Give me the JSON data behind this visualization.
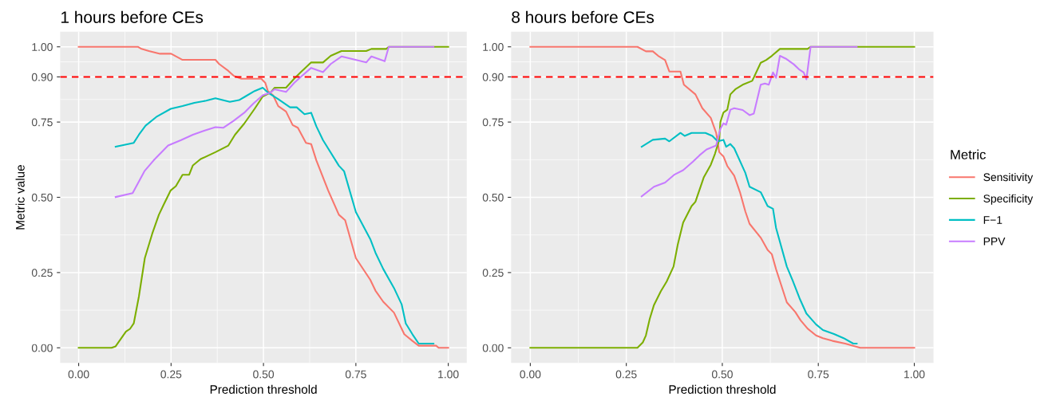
{
  "chart_data": [
    {
      "type": "line",
      "title": "1 hours before CEs",
      "xlabel": "Prediction threshold",
      "ylabel": "Metric value",
      "legend_title": "Metric",
      "legend": "right",
      "xlim": [
        -0.05,
        1.05
      ],
      "ylim": [
        -0.05,
        1.05
      ],
      "xticks": [
        {
          "value": 0,
          "label": "0.00"
        },
        {
          "value": 0.25,
          "label": "0.25"
        },
        {
          "value": 0.5,
          "label": "0.50"
        },
        {
          "value": 0.75,
          "label": "0.75"
        },
        {
          "value": 1,
          "label": "1.00"
        }
      ],
      "yticks": [
        {
          "value": 0,
          "label": "0.00"
        },
        {
          "value": 0.25,
          "label": "0.25"
        },
        {
          "value": 0.5,
          "label": "0.50"
        },
        {
          "value": 0.75,
          "label": "0.75"
        },
        {
          "value": 0.9,
          "label": "0.90"
        },
        {
          "value": 1,
          "label": "1.00"
        }
      ],
      "grid": true,
      "ref_lines": [
        {
          "axis": "y",
          "value": 0.9,
          "color": "#ff0000",
          "line_style": "dashed"
        }
      ],
      "series": [
        {
          "name": "Sensitivity",
          "color": "#f8766d",
          "x": [
            0,
            0.16,
            0.17,
            0.19,
            0.22,
            0.25,
            0.28,
            0.37,
            0.38,
            0.405,
            0.42,
            0.44,
            0.494,
            0.505,
            0.512,
            0.526,
            0.54,
            0.561,
            0.579,
            0.593,
            0.615,
            0.629,
            0.643,
            0.675,
            0.704,
            0.721,
            0.75,
            0.789,
            0.803,
            0.824,
            0.853,
            0.881,
            0.903,
            0.92,
            0.967,
            0.974,
            1.0
          ],
          "values": [
            1.0,
            1.0,
            0.993,
            0.986,
            0.977,
            0.977,
            0.957,
            0.957,
            0.943,
            0.92,
            0.903,
            0.894,
            0.894,
            0.88,
            0.853,
            0.839,
            0.803,
            0.785,
            0.74,
            0.731,
            0.681,
            0.677,
            0.623,
            0.523,
            0.442,
            0.424,
            0.298,
            0.226,
            0.19,
            0.153,
            0.117,
            0.045,
            0.023,
            0.007,
            0.007,
            0,
            0
          ]
        },
        {
          "name": "Specificity",
          "color": "#7cae00",
          "x": [
            0,
            0.089,
            0.1,
            0.128,
            0.139,
            0.149,
            0.163,
            0.179,
            0.199,
            0.217,
            0.231,
            0.249,
            0.263,
            0.281,
            0.299,
            0.309,
            0.33,
            0.37,
            0.405,
            0.423,
            0.448,
            0.476,
            0.498,
            0.519,
            0.53,
            0.561,
            0.583,
            0.601,
            0.629,
            0.661,
            0.682,
            0.711,
            0.778,
            0.792,
            0.832,
            0.839,
            1.0
          ],
          "values": [
            0,
            0,
            0.005,
            0.054,
            0.063,
            0.081,
            0.171,
            0.298,
            0.379,
            0.442,
            0.478,
            0.523,
            0.537,
            0.575,
            0.575,
            0.606,
            0.627,
            0.65,
            0.672,
            0.708,
            0.745,
            0.794,
            0.835,
            0.848,
            0.864,
            0.864,
            0.894,
            0.916,
            0.948,
            0.948,
            0.97,
            0.986,
            0.986,
            0.993,
            0.993,
            1.0,
            1.0
          ]
        },
        {
          "name": "F−1",
          "color": "#00bfc4",
          "x": [
            0.1,
            0.149,
            0.163,
            0.181,
            0.21,
            0.249,
            0.281,
            0.313,
            0.345,
            0.37,
            0.409,
            0.434,
            0.451,
            0.476,
            0.498,
            0.512,
            0.54,
            0.572,
            0.59,
            0.611,
            0.629,
            0.643,
            0.661,
            0.704,
            0.718,
            0.75,
            0.789,
            0.803,
            0.824,
            0.853,
            0.874,
            0.885,
            0.903,
            0.92,
            0.96
          ],
          "values": [
            0.668,
            0.681,
            0.708,
            0.738,
            0.767,
            0.794,
            0.803,
            0.814,
            0.821,
            0.829,
            0.817,
            0.823,
            0.835,
            0.853,
            0.864,
            0.848,
            0.826,
            0.799,
            0.799,
            0.776,
            0.781,
            0.736,
            0.69,
            0.605,
            0.587,
            0.451,
            0.361,
            0.316,
            0.262,
            0.199,
            0.144,
            0.081,
            0.045,
            0.014,
            0.014
          ]
        },
        {
          "name": "PPV",
          "color": "#c77cff",
          "x": [
            0.1,
            0.146,
            0.178,
            0.203,
            0.242,
            0.277,
            0.309,
            0.341,
            0.37,
            0.391,
            0.419,
            0.448,
            0.473,
            0.498,
            0.519,
            0.53,
            0.561,
            0.583,
            0.604,
            0.629,
            0.661,
            0.682,
            0.711,
            0.778,
            0.792,
            0.828,
            0.839,
            0.96
          ],
          "values": [
            0.501,
            0.514,
            0.587,
            0.623,
            0.672,
            0.69,
            0.708,
            0.722,
            0.733,
            0.731,
            0.754,
            0.781,
            0.812,
            0.839,
            0.848,
            0.859,
            0.85,
            0.88,
            0.903,
            0.93,
            0.916,
            0.943,
            0.968,
            0.948,
            0.968,
            0.952,
            1.0,
            1.0
          ]
        }
      ]
    },
    {
      "type": "line",
      "title": "8 hours before CEs",
      "xlabel": "Prediction threshold",
      "xlim": [
        -0.05,
        1.05
      ],
      "ylim": [
        -0.05,
        1.05
      ],
      "xticks": [
        {
          "value": 0,
          "label": "0.00"
        },
        {
          "value": 0.25,
          "label": "0.25"
        },
        {
          "value": 0.5,
          "label": "0.50"
        },
        {
          "value": 0.75,
          "label": "0.75"
        },
        {
          "value": 1,
          "label": "1.00"
        }
      ],
      "yticks": [
        {
          "value": 0,
          "label": "0.00"
        },
        {
          "value": 0.25,
          "label": "0.25"
        },
        {
          "value": 0.5,
          "label": "0.50"
        },
        {
          "value": 0.75,
          "label": "0.75"
        },
        {
          "value": 0.9,
          "label": "0.90"
        },
        {
          "value": 1,
          "label": "1.00"
        }
      ],
      "grid": true,
      "ref_lines": [
        {
          "axis": "y",
          "value": 0.9,
          "color": "#ff0000",
          "line_style": "dashed"
        }
      ],
      "series": [
        {
          "color": "#f8766d",
          "x": [
            0,
            0.279,
            0.301,
            0.319,
            0.333,
            0.351,
            0.362,
            0.391,
            0.4,
            0.43,
            0.448,
            0.47,
            0.484,
            0.492,
            0.503,
            0.513,
            0.531,
            0.546,
            0.56,
            0.571,
            0.6,
            0.618,
            0.629,
            0.64,
            0.668,
            0.69,
            0.704,
            0.722,
            0.744,
            0.762,
            0.787,
            0.82,
            0.859,
            1.0
          ],
          "values": [
            1.0,
            1.0,
            0.985,
            0.985,
            0.97,
            0.956,
            0.918,
            0.918,
            0.874,
            0.842,
            0.796,
            0.764,
            0.714,
            0.65,
            0.636,
            0.604,
            0.572,
            0.517,
            0.453,
            0.412,
            0.366,
            0.325,
            0.311,
            0.261,
            0.151,
            0.119,
            0.091,
            0.064,
            0.041,
            0.032,
            0.023,
            0.014,
            0,
            0
          ]
        },
        {
          "color": "#7cae00",
          "x": [
            0,
            0.279,
            0.293,
            0.301,
            0.311,
            0.322,
            0.34,
            0.355,
            0.373,
            0.384,
            0.398,
            0.42,
            0.43,
            0.452,
            0.47,
            0.481,
            0.492,
            0.495,
            0.503,
            0.513,
            0.521,
            0.535,
            0.553,
            0.578,
            0.6,
            0.614,
            0.629,
            0.65,
            0.722,
            0.73,
            1.0
          ],
          "values": [
            0,
            0,
            0.018,
            0.041,
            0.096,
            0.142,
            0.188,
            0.22,
            0.27,
            0.343,
            0.416,
            0.471,
            0.485,
            0.567,
            0.608,
            0.645,
            0.691,
            0.75,
            0.782,
            0.791,
            0.842,
            0.86,
            0.874,
            0.887,
            0.947,
            0.956,
            0.97,
            0.993,
            0.993,
            1.0,
            1.0
          ]
        },
        {
          "color": "#00bfc4",
          "x": [
            0.29,
            0.319,
            0.351,
            0.362,
            0.391,
            0.402,
            0.42,
            0.456,
            0.474,
            0.488,
            0.503,
            0.51,
            0.521,
            0.531,
            0.56,
            0.571,
            0.6,
            0.618,
            0.632,
            0.64,
            0.668,
            0.683,
            0.701,
            0.719,
            0.744,
            0.762,
            0.791,
            0.816,
            0.841,
            0.85
          ],
          "values": [
            0.668,
            0.691,
            0.695,
            0.686,
            0.714,
            0.704,
            0.714,
            0.714,
            0.704,
            0.686,
            0.691,
            0.668,
            0.677,
            0.663,
            0.581,
            0.535,
            0.517,
            0.471,
            0.462,
            0.398,
            0.27,
            0.224,
            0.165,
            0.114,
            0.078,
            0.059,
            0.046,
            0.032,
            0.014,
            0.014
          ]
        },
        {
          "color": "#c77cff",
          "x": [
            0.29,
            0.322,
            0.351,
            0.376,
            0.398,
            0.423,
            0.441,
            0.459,
            0.484,
            0.495,
            0.503,
            0.51,
            0.521,
            0.531,
            0.553,
            0.571,
            0.582,
            0.6,
            0.611,
            0.621,
            0.632,
            0.64,
            0.65,
            0.665,
            0.686,
            0.701,
            0.712,
            0.719,
            0.73,
            0.85
          ],
          "values": [
            0.503,
            0.535,
            0.549,
            0.576,
            0.59,
            0.618,
            0.64,
            0.659,
            0.672,
            0.727,
            0.746,
            0.741,
            0.791,
            0.796,
            0.79,
            0.773,
            0.778,
            0.874,
            0.878,
            0.874,
            0.915,
            0.897,
            0.97,
            0.961,
            0.942,
            0.924,
            0.915,
            0.892,
            1.0,
            1.0
          ]
        }
      ]
    }
  ]
}
